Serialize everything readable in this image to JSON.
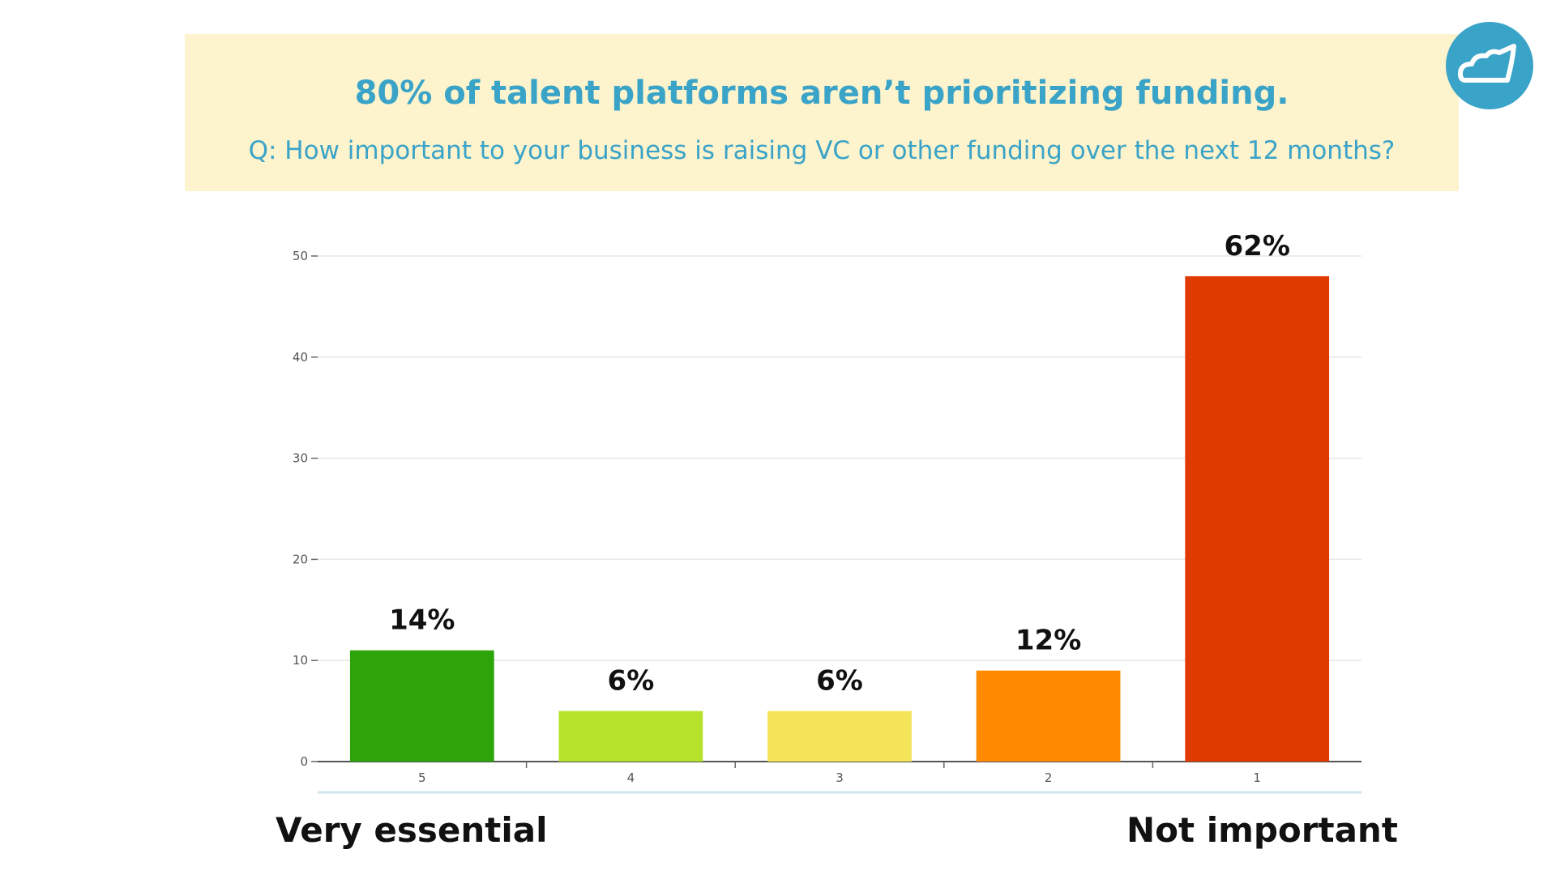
{
  "header": {
    "title": "80% of talent platforms aren’t prioritizing funding.",
    "subtitle": "Q: How important to your business is raising VC or other funding over the next 12 months?"
  },
  "logo": {
    "icon": "cloud-icon",
    "color": "#3aa3c8"
  },
  "scale_labels": {
    "left": "Very essential",
    "right": "Not important"
  },
  "chart_data": {
    "type": "bar",
    "categories": [
      "5",
      "4",
      "3",
      "2",
      "1"
    ],
    "values": [
      11,
      5,
      5,
      9,
      48
    ],
    "data_labels": [
      "14%",
      "6%",
      "6%",
      "12%",
      "62%"
    ],
    "colors": [
      "#2ca40a",
      "#b7e22b",
      "#f4e45a",
      "#ff8a00",
      "#df3a00"
    ],
    "yticks": [
      0,
      10,
      20,
      30,
      40,
      50
    ],
    "ylim": [
      0,
      50
    ],
    "grid": true,
    "xlabel": "",
    "ylabel": ""
  }
}
